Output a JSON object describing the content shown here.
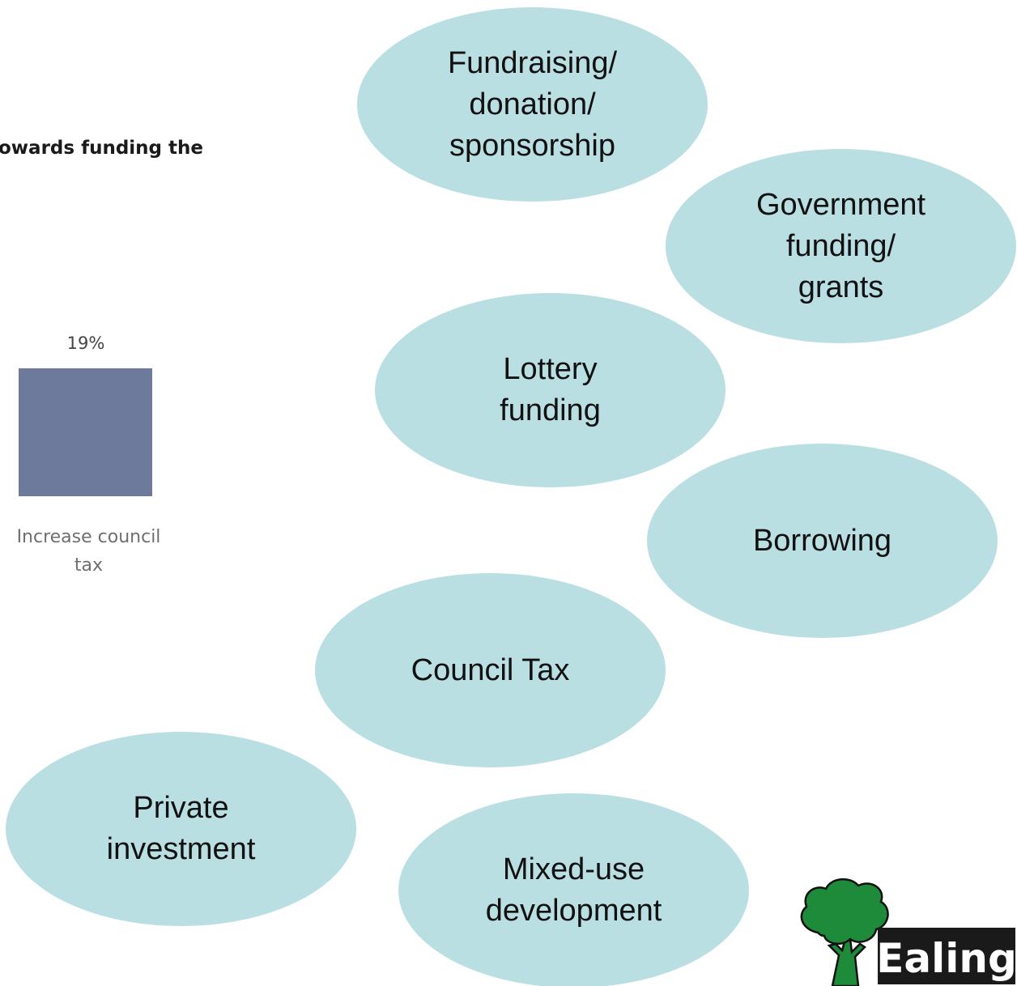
{
  "chart_fragment": {
    "title_partial": "owards funding the",
    "bar": {
      "value_label": "19%",
      "category_label": "Increase council\ntax",
      "color": "#6e7a9c"
    }
  },
  "chart_data": {
    "type": "bar",
    "categories": [
      "Increase council tax"
    ],
    "values": [
      19
    ],
    "value_unit": "%"
  },
  "bubbles": {
    "color": "#badfe3",
    "items": [
      {
        "id": "fundraising",
        "label": "Fundraising/\ndonation/\nsponsorship"
      },
      {
        "id": "government",
        "label": "Government\nfunding/\ngrants"
      },
      {
        "id": "lottery",
        "label": "Lottery\nfunding"
      },
      {
        "id": "borrowing",
        "label": "Borrowing"
      },
      {
        "id": "counciltax",
        "label": "Council Tax"
      },
      {
        "id": "private",
        "label": "Private\ninvestment"
      },
      {
        "id": "mixeduse",
        "label": "Mixed-use\ndevelopment"
      }
    ]
  },
  "logo": {
    "text": "Ealing",
    "icon": "oak-tree-icon",
    "tree_color": "#1e8b3a",
    "plate_color": "#1a1a1a"
  }
}
